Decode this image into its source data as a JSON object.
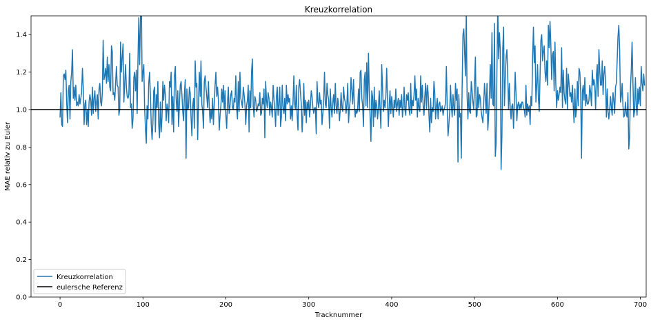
{
  "chart_data": {
    "type": "line",
    "title": "Kreuzkorrelation",
    "xlabel": "Tracknummer",
    "ylabel": "MAE relativ zu Euler",
    "xlim": [
      -35,
      707
    ],
    "ylim": [
      0.0,
      1.5
    ],
    "xticks": [
      0,
      100,
      200,
      300,
      400,
      500,
      600,
      700
    ],
    "yticks": [
      0.0,
      0.2,
      0.4,
      0.6,
      0.8,
      1.0,
      1.2,
      1.4
    ],
    "xtick_labels": [
      "0",
      "100",
      "200",
      "300",
      "400",
      "500",
      "600",
      "700"
    ],
    "ytick_labels": [
      "0.0",
      "0.2",
      "0.4",
      "0.6",
      "0.8",
      "1.0",
      "1.2",
      "1.4"
    ],
    "grid": false,
    "legend_position": "lower-left",
    "series": [
      {
        "name": "Kreuzkorrelation",
        "color": "#1f77b4",
        "x_start": 0,
        "x_step": 1,
        "values": [
          0.96,
          1.09,
          0.92,
          0.91,
          1.18,
          1.19,
          1.16,
          1.21,
          1.04,
          0.93,
          1.1,
          1.13,
          0.95,
          1.15,
          1.2,
          1.32,
          1.06,
          1.12,
          1.05,
          1.13,
          1.02,
          1.04,
          1.02,
          1.08,
          1.03,
          1.06,
          1.09,
          1.22,
          1.12,
          0.92,
          1.03,
          1.05,
          0.92,
          1.0,
          0.91,
          1.04,
          1.08,
          1.05,
          0.97,
          1.12,
          0.98,
          1.06,
          1.1,
          0.99,
          1.04,
          1.08,
          0.95,
          1.11,
          1.14,
          1.04,
          1.02,
          1.09,
          1.37,
          1.16,
          1.18,
          1.22,
          1.14,
          1.28,
          1.15,
          1.24,
          1.12,
          1.1,
          1.34,
          1.31,
          1.08,
          1.09,
          1.05,
          1.14,
          1.23,
          1.13,
          1.12,
          0.97,
          1.0,
          1.36,
          1.2,
          1.28,
          1.35,
          1.04,
          1.14,
          1.24,
          1.12,
          1.07,
          1.06,
          1.08,
          1.3,
          1.01,
          1.03,
          0.9,
          0.95,
          1.17,
          1.2,
          1.1,
          1.21,
          0.98,
          1.27,
          1.49,
          1.24,
          1.48,
          1.64,
          1.15,
          1.2,
          1.24,
          1.01,
          0.9,
          0.82,
          1.02,
          0.95,
          1.14,
          1.2,
          1.08,
          0.92,
          0.84,
          0.93,
          1.1,
          1.12,
          0.88,
          1.08,
          1.01,
          1.15,
          0.92,
          0.85,
          1.04,
          0.88,
          0.96,
          1.15,
          1.05,
          1.13,
          1.08,
          0.94,
          1.03,
          1.0,
          0.93,
          1.15,
          1.12,
          1.2,
          0.92,
          1.07,
          0.88,
          1.18,
          1.23,
          1.06,
          0.99,
          1.1,
          0.91,
          1.03,
          1.13,
          1.15,
          1.08,
          0.99,
          0.94,
          1.08,
          1.16,
          0.74,
          1.11,
          1.0,
          1.01,
          1.12,
          1.09,
          0.96,
          0.86,
          1.02,
          1.06,
          0.9,
          1.26,
          1.12,
          1.14,
          0.84,
          1.03,
          1.2,
          1.07,
          1.26,
          1.03,
          0.99,
          0.9,
          1.15,
          1.18,
          1.12,
          1.07,
          1.01,
          1.15,
          1.01,
          0.93,
          1.0,
          0.95,
          1.06,
          0.92,
          1.03,
          1.13,
          1.2,
          1.07,
          1.12,
          1.05,
          0.89,
          0.97,
          1.02,
          1.11,
          1.04,
          1.13,
          1.0,
          1.1,
          0.97,
          0.9,
          1.04,
          1.12,
          0.98,
          1.02,
          1.08,
          1.1,
          1.01,
          1.0,
          1.06,
          1.04,
          1.18,
          1.01,
          0.95,
          1.15,
          0.99,
          1.2,
          1.06,
          1.04,
          1.01,
          1.12,
          1.08,
          1.03,
          0.92,
          1.02,
          1.05,
          1.13,
          0.88,
          1.1,
          1.01,
          1.2,
          1.27,
          1.02,
          0.96,
          1.07,
          1.05,
          0.99,
          1.0,
          1.03,
          1.02,
          1.09,
          0.97,
          0.98,
          1.06,
          1.03,
          1.11,
          0.85,
          1.15,
          1.05,
          1.01,
          1.09,
          1.06,
          0.97,
          1.04,
          1.01,
          0.96,
          1.13,
          1.06,
          1.0,
          0.91,
          1.07,
          1.12,
          0.97,
          1.03,
          1.12,
          0.91,
          0.96,
          1.13,
          1.01,
          0.98,
          1.06,
          0.94,
          1.13,
          1.03,
          1.08,
          1.04,
          1.06,
          0.95,
          1.02,
          0.94,
          1.04,
          1.18,
          1.03,
          1.0,
          1.13,
          0.97,
          0.89,
          1.12,
          1.16,
          1.09,
          1.03,
          0.88,
          0.98,
          1.14,
          0.97,
          1.05,
          0.93,
          1.04,
          1.0,
          1.05,
          0.96,
          1.02,
          1.1,
          1.07,
          1.01,
          0.98,
          1.01,
          1.01,
          0.87,
          1.15,
          1.04,
          1.01,
          1.09,
          1.03,
          1.05,
          0.92,
          0.98,
          1.05,
          1.2,
          1.03,
          1.01,
          1.14,
          1.08,
          1.05,
          0.9,
          1.11,
          1.01,
          0.96,
          1.04,
          1.08,
          0.98,
          1.14,
          1.02,
          0.98,
          1.06,
          1.02,
          0.94,
          1.0,
          1.09,
          1.01,
          0.99,
          1.12,
          1.06,
          1.04,
          0.98,
          1.03,
          1.14,
          0.93,
          1.01,
          1.05,
          1.17,
          1.1,
          1.03,
          1.16,
          1.03,
          0.96,
          1.0,
          0.98,
          1.0,
          1.11,
          0.99,
          1.2,
          1.21,
          1.06,
          1.02,
          0.91,
          1.16,
          1.2,
          1.02,
          1.25,
          1.01,
          1.3,
          1.1,
          0.96,
          0.83,
          1.1,
          1.07,
          0.91,
          1.12,
          0.96,
          1.05,
          1.02,
          0.95,
          1.01,
          1.1,
          1.0,
          0.9,
          1.24,
          1.12,
          0.99,
          1.05,
          1.01,
          1.07,
          1.22,
          1.05,
          0.91,
          1.02,
          1.1,
          0.98,
          1.07,
          1.02,
          0.96,
          1.05,
          1.01,
          1.11,
          0.99,
          1.03,
          1.06,
          0.97,
          1.05,
          1.01,
          1.08,
          0.96,
          1.02,
          1.12,
          1.0,
          0.97,
          1.08,
          1.05,
          1.09,
          1.0,
          0.97,
          1.14,
          0.98,
          1.05,
          1.02,
          1.08,
          1.18,
          1.05,
          1.11,
          0.96,
          1.06,
          1.01,
          0.99,
          1.18,
          1.04,
          1.13,
          1.02,
          0.97,
          1.07,
          1.14,
          1.0,
          1.13,
          1.09,
          0.97,
          0.88,
          1.06,
          0.93,
          1.01,
          0.99,
          1.15,
          1.09,
          0.95,
          1.02,
          1.06,
          0.95,
          1.03,
          1.04,
          0.99,
          1.0,
          1.02,
          0.97,
          1.0,
          1.01,
          1.04,
          1.23,
          1.01,
          0.86,
          0.92,
          0.99,
          1.13,
          1.02,
          0.96,
          1.08,
          1.01,
          0.97,
          1.14,
          1.05,
          1.11,
          0.72,
          1.08,
          0.96,
          0.98,
          0.74,
          1.12,
          1.4,
          1.43,
          1.31,
          1.18,
          1.52,
          1.07,
          0.95,
          1.09,
          0.99,
          0.98,
          1.15,
          1.1,
          1.04,
          1.0,
          1.14,
          1.28,
          0.96,
          0.97,
          1.12,
          1.01,
          1.08,
          1.06,
          0.99,
          0.96,
          0.93,
          1.03,
          1.14,
          1.07,
          0.98,
          1.14,
          0.89,
          0.97,
          1.09,
          1.24,
          1.06,
          1.41,
          1.03,
          1.02,
          1.46,
          0.75,
          0.82,
          1.22,
          1.55,
          1.27,
          1.41,
          1.32,
          0.68,
          0.86,
          1.32,
          1.44,
          1.02,
          1.16,
          1.28,
          1.32,
          1.18,
          1.0,
          1.14,
          1.01,
          0.95,
          1.02,
          1.03,
          0.9,
          1.04,
          1.2,
          1.08,
          0.94,
          1.02,
          1.04,
          1.0,
          1.03,
          1.0,
          1.04,
          1.04,
          1.01,
          1.0,
          0.96,
          1.13,
          0.97,
          1.03,
          0.99,
          1.02,
          0.92,
          1.07,
          1.02,
          1.27,
          1.44,
          1.25,
          1.34,
          1.04,
          1.13,
          1.24,
          1.06,
          0.99,
          1.18,
          1.37,
          1.4,
          1.26,
          1.31,
          1.34,
          1.2,
          1.15,
          1.26,
          1.13,
          1.45,
          1.33,
          1.47,
          1.35,
          1.16,
          1.29,
          1.31,
          1.1,
          1.36,
          1.14,
          1.01,
          1.1,
          1.05,
          1.08,
          1.12,
          1.09,
          1.33,
          1.01,
          1.21,
          1.09,
          1.05,
          1.03,
          1.22,
          1.0,
          1.19,
          1.14,
          1.07,
          1.09,
          1.04,
          1.13,
          1.02,
          0.93,
          1.11,
          0.96,
          1.0,
          1.15,
          1.02,
          1.22,
          1.2,
          1.09,
          0.74,
          1.09,
          1.13,
          1.05,
          1.17,
          1.02,
          1.08,
          1.03,
          1.03,
          1.05,
          1.13,
          1.09,
          1.02,
          1.21,
          1.13,
          1.16,
          1.13,
          1.0,
          1.18,
          1.24,
          1.07,
          1.32,
          1.21,
          1.13,
          1.13,
          1.26,
          1.08,
          1.19,
          1.23,
          1.15,
          0.96,
          1.11,
          0.99,
          0.95,
          1.0,
          1.07,
          1.01,
          0.97,
          1.09,
          1.05,
          0.98,
          1.12,
          1.14,
          1.26,
          1.39,
          1.45,
          1.32,
          1.04,
          1.07,
          1.14,
          1.02,
          0.96,
          0.97,
          1.04,
          0.98,
          0.96,
          1.09,
          0.79,
          0.85,
          1.11,
          1.21,
          1.36,
          1.15,
          0.96,
          0.99,
          1.17,
          1.02,
          0.97,
          1.11,
          1.03,
          1.12,
          1.02,
          1.23,
          1.14,
          1.1,
          1.19,
          1.13
        ]
      },
      {
        "name": "eulersche Referenz",
        "color": "#000000",
        "constant": 1.0
      }
    ]
  }
}
